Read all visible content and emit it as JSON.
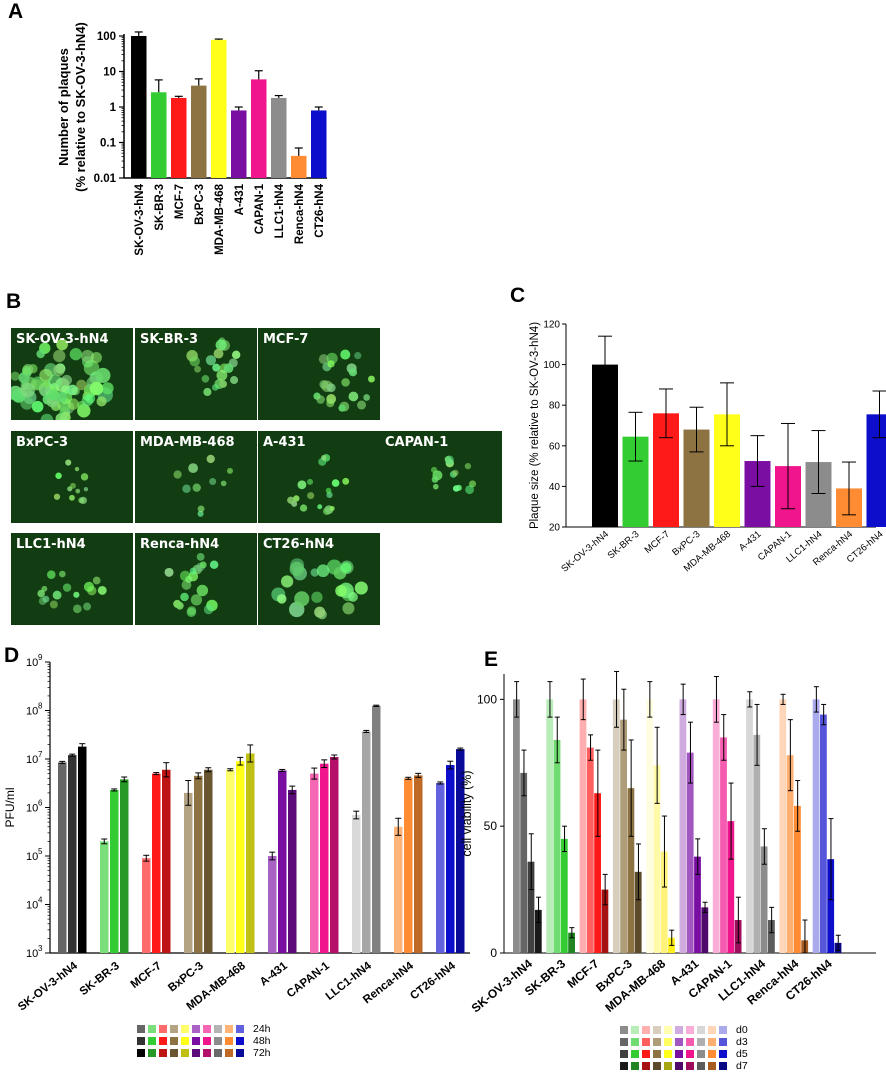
{
  "panels": {
    "A": "A",
    "B": "B",
    "C": "C",
    "D": "D",
    "E": "E"
  },
  "micrographs": [
    {
      "label": "SK-OV-3-hN4"
    },
    {
      "label": "SK-BR-3"
    },
    {
      "label": "MCF-7"
    },
    {
      "label": "BxPC-3"
    },
    {
      "label": "MDA-MB-468"
    },
    {
      "label": "A-431"
    },
    {
      "label": "CAPAN-1"
    },
    {
      "label": "LLC1-hN4"
    },
    {
      "label": "Renca-hN4"
    },
    {
      "label": "CT26-hN4"
    }
  ],
  "colors": {
    "cell_lines": [
      "#000000",
      "#33cc33",
      "#ff1a1a",
      "#8c7341",
      "#ffff1a",
      "#7a0ea3",
      "#f0158c",
      "#8c8c8c",
      "#ff8c33",
      "#0d0dcc"
    ]
  },
  "chart_data": [
    {
      "id": "A",
      "type": "bar",
      "ylabel": "Number of plaques\n(% relative to SK-OV-3-hN4)",
      "yscale": "log",
      "ylim": [
        0.01,
        100
      ],
      "yticks": [
        "0.01",
        "0.1",
        "1",
        "10",
        "100"
      ],
      "categories": [
        "SK-OV-3-hN4",
        "SK-BR-3",
        "MCF-7",
        "BxPC-3",
        "MDA-MB-468",
        "A-431",
        "CAPAN-1",
        "LLC1-hN4",
        "Renca-hN4",
        "CT26-hN4"
      ],
      "values": [
        100,
        2.6,
        1.8,
        4.0,
        78,
        0.8,
        6.0,
        1.8,
        0.042,
        0.8
      ],
      "errors_upper": [
        130,
        5.8,
        2.0,
        6.2,
        82,
        1.0,
        10.5,
        2.1,
        0.07,
        1.0
      ]
    },
    {
      "id": "C",
      "type": "bar",
      "ylabel": "Plaque size (% relative to SK-OV-3-hN4)",
      "ylim": [
        20,
        120
      ],
      "yticks": [
        "20",
        "40",
        "60",
        "80",
        "100",
        "120"
      ],
      "categories": [
        "SK-OV-3-hN4",
        "SK-BR-3",
        "MCF-7",
        "BxPC-3",
        "MDA-MB-468",
        "A-431",
        "CAPAN-1",
        "LLC1-hN4",
        "Renca-hN4",
        "CT26-hN4"
      ],
      "values": [
        100,
        64.5,
        76,
        68,
        75.5,
        52.5,
        50,
        52,
        39,
        75.5
      ],
      "errors": [
        14,
        12,
        12,
        11,
        15.5,
        12.5,
        21,
        15.5,
        13,
        11.5
      ]
    },
    {
      "id": "D",
      "type": "bar",
      "ylabel": "PFU/ml",
      "yscale": "log",
      "ylim": [
        1000,
        1000000000
      ],
      "yticks": [
        {
          "base": "10",
          "exp": "3"
        },
        {
          "base": "10",
          "exp": "4"
        },
        {
          "base": "10",
          "exp": "5"
        },
        {
          "base": "10",
          "exp": "6"
        },
        {
          "base": "10",
          "exp": "7"
        },
        {
          "base": "10",
          "exp": "8"
        },
        {
          "base": "10",
          "exp": "9"
        }
      ],
      "categories": [
        "SK-OV-3-hN4",
        "SK-BR-3",
        "MCF-7",
        "BxPC-3",
        "MDA-MB-468",
        "A-431",
        "CAPAN-1",
        "LLC1-hN4",
        "Renca-hN4",
        "CT26-hN4"
      ],
      "series": [
        {
          "name": "24h",
          "values": [
            8500000,
            200000,
            90000,
            2000000,
            6000000,
            100000,
            5000000,
            700000,
            400000,
            3200000
          ],
          "err_factor": [
            1.05,
            1.12,
            1.15,
            1.8,
            1.05,
            1.2,
            1.3,
            1.2,
            1.5,
            1.05
          ]
        },
        {
          "name": "48h",
          "values": [
            12000000,
            2300000,
            5000000,
            4500000,
            9000000,
            5800000,
            8000000,
            37000000,
            4000000,
            7500000
          ],
          "err_factor": [
            1.05,
            1.05,
            1.05,
            1.15,
            1.2,
            1.05,
            1.2,
            1.05,
            1.05,
            1.2
          ]
        },
        {
          "name": "72h",
          "values": [
            18000000,
            3800000,
            6000000,
            6000000,
            13000000,
            2300000,
            11000000,
            125000000,
            4600000,
            16000000
          ],
          "err_factor": [
            1.15,
            1.12,
            1.4,
            1.1,
            1.5,
            1.2,
            1.1,
            1.03,
            1.1,
            1.05
          ]
        }
      ]
    },
    {
      "id": "E",
      "type": "bar",
      "ylabel": "cell viability (%)",
      "ylim": [
        0,
        110
      ],
      "yticks": [
        "0",
        "50",
        "100"
      ],
      "categories": [
        "SK-OV-3-hN4",
        "SK-BR-3",
        "MCF-7",
        "BxPC-3",
        "MDA-MB-468",
        "A-431",
        "CAPAN-1",
        "LLC1-hN4",
        "Renca-hN4",
        "CT26-hN4"
      ],
      "series": [
        {
          "name": "d0",
          "values": [
            100,
            100,
            100,
            100,
            100,
            100,
            100,
            100,
            100,
            100
          ],
          "errors": [
            7,
            7,
            8,
            11,
            7,
            6,
            9,
            3,
            2,
            5
          ]
        },
        {
          "name": "d3",
          "values": [
            71,
            84,
            81,
            92,
            74,
            79,
            85,
            86,
            78,
            94
          ],
          "errors": [
            9,
            9,
            5,
            12,
            15,
            12,
            9,
            12,
            14,
            4
          ]
        },
        {
          "name": "d5",
          "values": [
            36,
            45,
            63,
            65,
            40,
            38,
            52,
            42,
            58,
            37
          ],
          "errors": [
            11,
            5,
            17,
            19,
            14,
            7,
            15,
            7,
            10,
            16
          ]
        },
        {
          "name": "d7",
          "values": [
            17,
            8,
            25,
            32,
            6,
            18,
            13,
            13,
            5,
            4
          ],
          "errors": [
            5,
            2,
            6,
            11,
            3,
            2,
            9,
            5,
            8,
            3
          ]
        }
      ]
    }
  ]
}
